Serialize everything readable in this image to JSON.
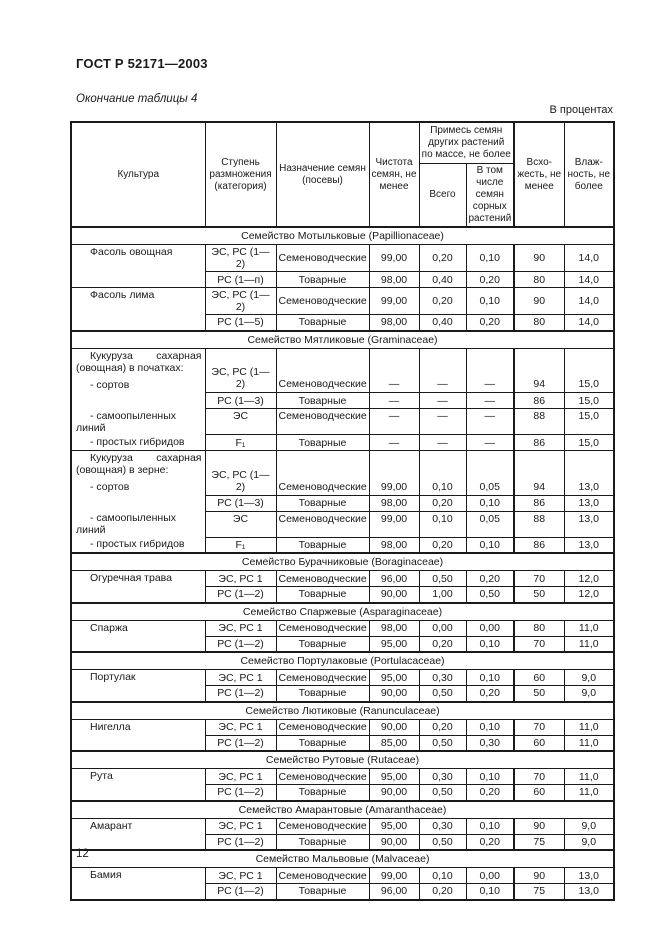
{
  "page": {
    "doc_code": "ГОСТ Р 52171—2003",
    "caption": "Окончание таблицы 4",
    "units": "В процентах",
    "page_number": "12"
  },
  "table": {
    "columns": {
      "culture": "Культура",
      "category": "Ступень размножения (категория)",
      "purpose": "Назначение семян (посевы)",
      "purity": "Чистота семян, не менее",
      "admixture_group": "Примесь семян других растений по массе, не более",
      "admixture_total": "Всего",
      "admixture_weed": "В том числе семян сорных растений",
      "germination": "Всхо-жесть, не менее",
      "moisture": "Влаж-ность, не более"
    },
    "sections": [
      {
        "family": "Семейство Мотыльковые (Papillionaceae)",
        "groups": [
          {
            "name": "Фасоль овощная",
            "rows": [
              {
                "category": "ЭС, РС (1—2)",
                "purpose": "Семеноводческие",
                "purity": "99,00",
                "total": "0,20",
                "weed": "0,10",
                "germ": "90",
                "moist": "14,0"
              },
              {
                "category": "РС (1—п)",
                "purpose": "Товарные",
                "purity": "98,00",
                "total": "0,40",
                "weed": "0,20",
                "germ": "80",
                "moist": "14,0"
              }
            ]
          },
          {
            "name": "Фасоль лима",
            "rows": [
              {
                "category": "ЭС, РС (1—2)",
                "purpose": "Семеноводческие",
                "purity": "99,00",
                "total": "0,20",
                "weed": "0,10",
                "germ": "90",
                "moist": "14,0"
              },
              {
                "category": "РС (1—5)",
                "purpose": "Товарные",
                "purity": "98,00",
                "total": "0,40",
                "weed": "0,20",
                "germ": "80",
                "moist": "14,0"
              }
            ]
          }
        ]
      },
      {
        "family": "Семейство Мятликовые (Graminaceae)",
        "groups": [
          {
            "name": "Кукуруза сахарная (овощная) в початках:",
            "list": true,
            "rows": [
              {
                "label": "- сортов",
                "category": "ЭС, РС (1—2)",
                "purpose": "Семеноводческие",
                "purity": "—",
                "total": "—",
                "weed": "—",
                "germ": "94",
                "moist": "15,0"
              },
              {
                "label": "",
                "category": "РС (1—3)",
                "purpose": "Товарные",
                "purity": "—",
                "total": "—",
                "weed": "—",
                "germ": "86",
                "moist": "15,0"
              },
              {
                "label": "- самоопыленных линий",
                "category": "ЭС",
                "purpose": "Семеноводческие",
                "purity": "—",
                "total": "—",
                "weed": "—",
                "germ": "88",
                "moist": "15,0"
              },
              {
                "label": "- простых гибридов",
                "category": "F₁",
                "purpose": "Товарные",
                "purity": "—",
                "total": "—",
                "weed": "—",
                "germ": "86",
                "moist": "15,0"
              }
            ]
          },
          {
            "name": "Кукуруза сахарная (овощная) в зерне:",
            "list": true,
            "rows": [
              {
                "label": "- сортов",
                "category": "ЭС, РС (1—2)",
                "purpose": "Семеноводческие",
                "purity": "99,00",
                "total": "0,10",
                "weed": "0,05",
                "germ": "94",
                "moist": "13,0"
              },
              {
                "label": "",
                "category": "РС (1—3)",
                "purpose": "Товарные",
                "purity": "98,00",
                "total": "0,20",
                "weed": "0,10",
                "germ": "86",
                "moist": "13,0"
              },
              {
                "label": "- самоопыленных линий",
                "category": "ЭС",
                "purpose": "Семеноводческие",
                "purity": "99,00",
                "total": "0,10",
                "weed": "0,05",
                "germ": "88",
                "moist": "13,0"
              },
              {
                "label": "- простых гибридов",
                "category": "F₁",
                "purpose": "Товарные",
                "purity": "98,00",
                "total": "0,20",
                "weed": "0,10",
                "germ": "86",
                "moist": "13,0"
              }
            ]
          }
        ]
      },
      {
        "family": "Семейство Бурачниковые (Boraginaceae)",
        "groups": [
          {
            "name": "Огуречная трава",
            "rows": [
              {
                "category": "ЭС, РС 1",
                "purpose": "Семеноводческие",
                "purity": "96,00",
                "total": "0,50",
                "weed": "0,20",
                "germ": "70",
                "moist": "12,0"
              },
              {
                "category": "РС (1—2)",
                "purpose": "Товарные",
                "purity": "90,00",
                "total": "1,00",
                "weed": "0,50",
                "germ": "50",
                "moist": "12,0"
              }
            ]
          }
        ]
      },
      {
        "family": "Семейство Спаржевые (Asparaginaceae)",
        "groups": [
          {
            "name": "Спаржа",
            "rows": [
              {
                "category": "ЭС, РС 1",
                "purpose": "Семеноводческие",
                "purity": "98,00",
                "total": "0,00",
                "weed": "0,00",
                "germ": "80",
                "moist": "11,0"
              },
              {
                "category": "РС (1—2)",
                "purpose": "Товарные",
                "purity": "95,00",
                "total": "0,20",
                "weed": "0,10",
                "germ": "70",
                "moist": "11,0"
              }
            ]
          }
        ]
      },
      {
        "family": "Семейство Портулаковые (Portulacaceae)",
        "groups": [
          {
            "name": "Портулак",
            "rows": [
              {
                "category": "ЭС, РС 1",
                "purpose": "Семеноводческие",
                "purity": "95,00",
                "total": "0,30",
                "weed": "0,10",
                "germ": "60",
                "moist": "9,0"
              },
              {
                "category": "РС (1—2)",
                "purpose": "Товарные",
                "purity": "90,00",
                "total": "0,50",
                "weed": "0,20",
                "germ": "50",
                "moist": "9,0"
              }
            ]
          }
        ]
      },
      {
        "family": "Семейство Лютиковые (Ranunculaceae)",
        "groups": [
          {
            "name": "Нигелла",
            "rows": [
              {
                "category": "ЭС, РС 1",
                "purpose": "Семеноводческие",
                "purity": "90,00",
                "total": "0,20",
                "weed": "0,10",
                "germ": "70",
                "moist": "11,0"
              },
              {
                "category": "РС (1—2)",
                "purpose": "Товарные",
                "purity": "85,00",
                "total": "0,50",
                "weed": "0,30",
                "germ": "60",
                "moist": "11,0"
              }
            ]
          }
        ]
      },
      {
        "family": "Семейство Рутовые (Rutaceae)",
        "groups": [
          {
            "name": "Рута",
            "rows": [
              {
                "category": "ЭС, РС 1",
                "purpose": "Семеноводческие",
                "purity": "95,00",
                "total": "0,30",
                "weed": "0,10",
                "germ": "70",
                "moist": "11,0"
              },
              {
                "category": "РС (1—2)",
                "purpose": "Товарные",
                "purity": "90,00",
                "total": "0,50",
                "weed": "0,20",
                "germ": "60",
                "moist": "11,0"
              }
            ]
          }
        ]
      },
      {
        "family": "Семейство Амарантовые (Amaranthaceae)",
        "groups": [
          {
            "name": "Амарант",
            "rows": [
              {
                "category": "ЭС, РС 1",
                "purpose": "Семеноводческие",
                "purity": "95,00",
                "total": "0,30",
                "weed": "0,10",
                "germ": "90",
                "moist": "9,0"
              },
              {
                "category": "РС (1—2)",
                "purpose": "Товарные",
                "purity": "90,00",
                "total": "0,50",
                "weed": "0,20",
                "germ": "75",
                "moist": "9,0"
              }
            ]
          }
        ]
      },
      {
        "family": "Семейство Мальвовые (Malvaceae)",
        "groups": [
          {
            "name": "Бамия",
            "rows": [
              {
                "category": "ЭС, РС 1",
                "purpose": "Семеноводческие",
                "purity": "99,00",
                "total": "0,10",
                "weed": "0,00",
                "germ": "90",
                "moist": "13,0"
              },
              {
                "category": "РС (1—2)",
                "purpose": "Товарные",
                "purity": "96,00",
                "total": "0,20",
                "weed": "0,10",
                "germ": "75",
                "moist": "13,0"
              }
            ]
          }
        ]
      }
    ]
  }
}
